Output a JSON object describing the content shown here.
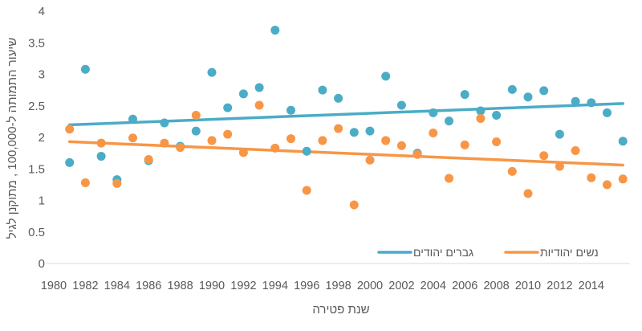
{
  "chart_data": {
    "type": "scatter",
    "xlabel": "שנת פטירה",
    "ylabel": "שיעור התמותה ל-100,000 , מתוקנן לגיל",
    "xlim": [
      1980,
      2016
    ],
    "ylim": [
      0,
      4
    ],
    "x_ticks": [
      1980,
      1982,
      1984,
      1986,
      1988,
      1990,
      1992,
      1994,
      1996,
      1998,
      2000,
      2002,
      2004,
      2006,
      2008,
      2010,
      2012,
      2014
    ],
    "y_ticks": [
      "0",
      "0.5",
      "1",
      "1.5",
      "2",
      "2.5",
      "3",
      "3.5",
      "4"
    ],
    "grid": false,
    "legend_position": "bottom-right",
    "trendline": "linear",
    "x": [
      1981,
      1982,
      1983,
      1984,
      1985,
      1986,
      1987,
      1988,
      1989,
      1990,
      1991,
      1992,
      1993,
      1994,
      1995,
      1996,
      1997,
      1998,
      1999,
      2000,
      2001,
      2002,
      2003,
      2004,
      2005,
      2006,
      2007,
      2008,
      2009,
      2010,
      2011,
      2012,
      2013,
      2014,
      2015,
      2016
    ],
    "series": [
      {
        "name": "גברים יהודים",
        "color": "#4bacc6",
        "values": [
          1.6,
          3.08,
          1.7,
          1.33,
          2.29,
          1.63,
          2.23,
          1.86,
          2.1,
          3.03,
          2.47,
          2.69,
          2.79,
          3.7,
          2.43,
          1.78,
          2.75,
          2.62,
          2.08,
          2.1,
          2.97,
          2.51,
          1.75,
          2.39,
          2.26,
          2.68,
          2.42,
          2.35,
          2.76,
          2.64,
          2.74,
          2.05,
          2.57,
          2.55,
          2.39,
          1.94
        ]
      },
      {
        "name": "נשים יהודיות",
        "color": "#f79646",
        "values": [
          2.13,
          1.28,
          1.91,
          1.27,
          1.99,
          1.65,
          1.91,
          1.84,
          2.35,
          1.95,
          2.05,
          1.76,
          2.51,
          1.83,
          1.98,
          1.16,
          1.95,
          2.14,
          0.93,
          1.64,
          1.95,
          1.87,
          1.73,
          2.07,
          1.35,
          1.88,
          2.3,
          1.93,
          1.46,
          1.11,
          1.71,
          1.54,
          1.79,
          1.36,
          1.25,
          1.34
        ]
      }
    ]
  }
}
